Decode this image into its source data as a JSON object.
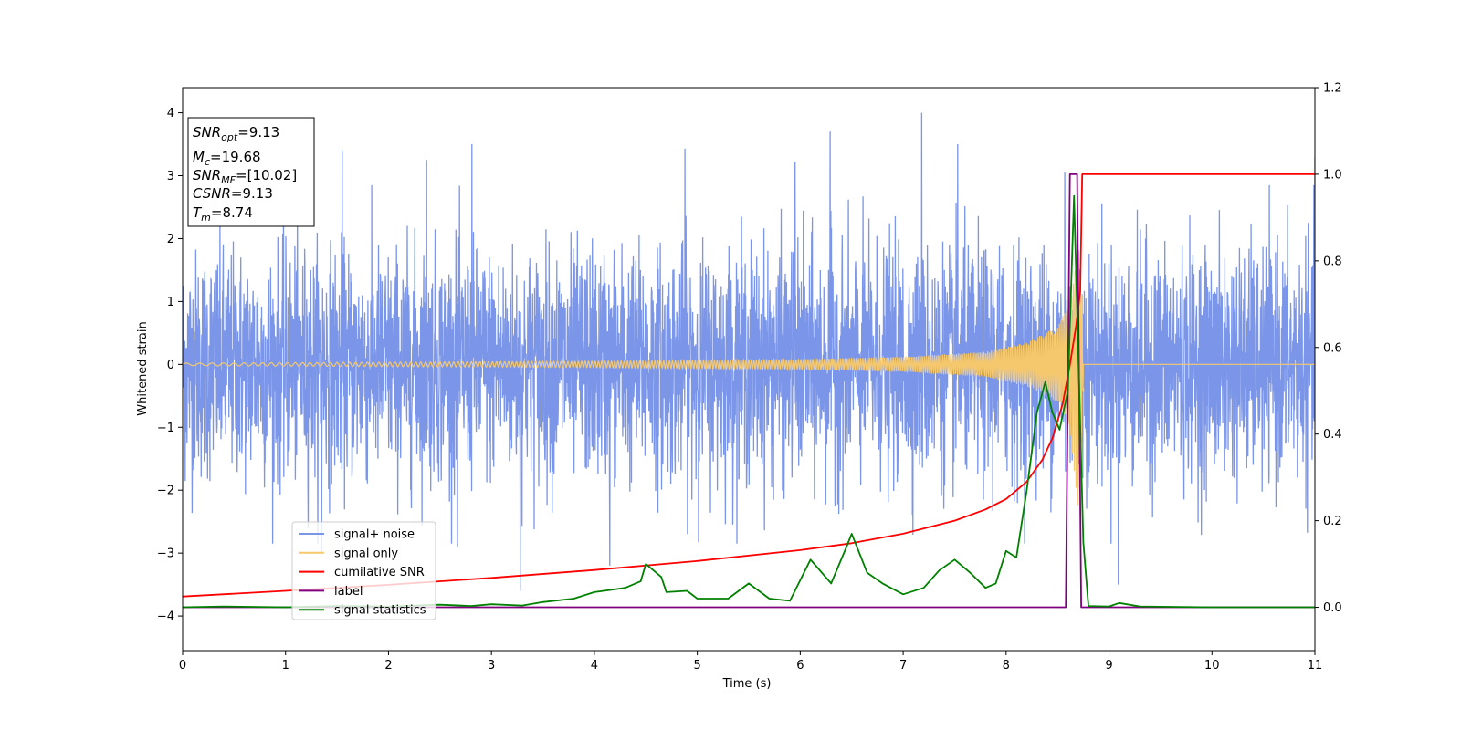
{
  "chart_data": {
    "type": "line",
    "xlabel": "Time (s)",
    "ylabel": "Whitened strain",
    "xlim": [
      0,
      11
    ],
    "ylim": [
      -4.55,
      4.4
    ],
    "y2lim": [
      -0.1,
      1.2
    ],
    "xticks": [
      0,
      1,
      2,
      3,
      4,
      5,
      6,
      7,
      8,
      9,
      10,
      11
    ],
    "yticks": [
      -4,
      -3,
      -2,
      -1,
      0,
      1,
      2,
      3,
      4
    ],
    "y2ticks": [
      "0.0",
      "0.2",
      "0.4",
      "0.6",
      "0.8",
      "1.0",
      "1.2"
    ],
    "legend_position": "lower-left",
    "annotation": {
      "snr_opt": {
        "symbol": "SNR",
        "sub": "opt",
        "value": "=9.13"
      },
      "mc": {
        "symbol": "M",
        "sub": "c",
        "value": "=19.68"
      },
      "snr_mf": {
        "symbol": "SNR",
        "sub": "MF",
        "value": "=[10.02]"
      },
      "csnr": {
        "symbol": "CSNR",
        "value": "=9.13"
      },
      "tm": {
        "symbol": "T",
        "sub": "m",
        "value": "=8.74"
      }
    },
    "series": [
      {
        "name": "signal+ noise",
        "color": "#7b96e8",
        "axis": "left",
        "description_range": [
          -3.6,
          4.0
        ],
        "spikes": [
          [
            1.55,
            3.4
          ],
          [
            2.37,
            3.25
          ],
          [
            2.81,
            3.5
          ],
          [
            4.88,
            3.43
          ],
          [
            5.95,
            3.22
          ],
          [
            6.29,
            3.7
          ],
          [
            7.18,
            4.0
          ],
          [
            7.53,
            3.5
          ],
          [
            8.57,
            3.05
          ],
          [
            9.09,
            3.55
          ],
          [
            11.0,
            3.3
          ],
          [
            3.28,
            -3.6
          ],
          [
            4.15,
            -3.2
          ],
          [
            9.09,
            -3.5
          ],
          [
            1.35,
            -3.0
          ],
          [
            2.67,
            -2.9
          ]
        ]
      },
      {
        "name": "signal only",
        "color": "#f5c86e",
        "axis": "left",
        "envelope": [
          [
            0,
            0.02
          ],
          [
            4,
            0.05
          ],
          [
            6,
            0.08
          ],
          [
            7,
            0.12
          ],
          [
            7.8,
            0.2
          ],
          [
            8.2,
            0.35
          ],
          [
            8.5,
            0.6
          ],
          [
            8.62,
            1.0
          ],
          [
            8.7,
            2.3
          ],
          [
            8.74,
            1.3
          ],
          [
            8.75,
            0
          ]
        ]
      },
      {
        "name": "cumilative SNR",
        "color": "#ff0000",
        "axis": "right",
        "points": [
          [
            0,
            0.025
          ],
          [
            1,
            0.038
          ],
          [
            2,
            0.052
          ],
          [
            3,
            0.068
          ],
          [
            4,
            0.086
          ],
          [
            5,
            0.107
          ],
          [
            6,
            0.132
          ],
          [
            6.5,
            0.148
          ],
          [
            7,
            0.17
          ],
          [
            7.5,
            0.2
          ],
          [
            7.8,
            0.226
          ],
          [
            8.0,
            0.25
          ],
          [
            8.2,
            0.29
          ],
          [
            8.35,
            0.34
          ],
          [
            8.45,
            0.39
          ],
          [
            8.55,
            0.47
          ],
          [
            8.62,
            0.56
          ],
          [
            8.68,
            0.65
          ],
          [
            8.72,
            0.73
          ],
          [
            8.74,
            1.0
          ],
          [
            11,
            1.0
          ]
        ]
      },
      {
        "name": "label",
        "color": "#800080",
        "axis": "right",
        "points": [
          [
            0,
            0
          ],
          [
            8.58,
            0
          ],
          [
            8.62,
            1.0
          ],
          [
            8.69,
            1.0
          ],
          [
            8.73,
            0
          ],
          [
            11,
            0
          ]
        ]
      },
      {
        "name": "signal statistics",
        "color": "#008000",
        "axis": "right",
        "points": [
          [
            0,
            0
          ],
          [
            0.4,
            0.002
          ],
          [
            1,
            0
          ],
          [
            1.5,
            0.003
          ],
          [
            2,
            0.002
          ],
          [
            2.5,
            0.006
          ],
          [
            2.8,
            0.003
          ],
          [
            3,
            0.007
          ],
          [
            3.3,
            0.004
          ],
          [
            3.5,
            0.012
          ],
          [
            3.8,
            0.02
          ],
          [
            4.0,
            0.035
          ],
          [
            4.15,
            0.04
          ],
          [
            4.3,
            0.045
          ],
          [
            4.45,
            0.06
          ],
          [
            4.5,
            0.1
          ],
          [
            4.65,
            0.07
          ],
          [
            4.7,
            0.035
          ],
          [
            4.9,
            0.038
          ],
          [
            5.0,
            0.02
          ],
          [
            5.3,
            0.02
          ],
          [
            5.5,
            0.055
          ],
          [
            5.7,
            0.02
          ],
          [
            5.9,
            0.015
          ],
          [
            6.1,
            0.11
          ],
          [
            6.3,
            0.055
          ],
          [
            6.45,
            0.14
          ],
          [
            6.5,
            0.17
          ],
          [
            6.65,
            0.08
          ],
          [
            6.8,
            0.055
          ],
          [
            7.0,
            0.03
          ],
          [
            7.2,
            0.045
          ],
          [
            7.35,
            0.085
          ],
          [
            7.5,
            0.11
          ],
          [
            7.65,
            0.08
          ],
          [
            7.8,
            0.045
          ],
          [
            7.9,
            0.055
          ],
          [
            8.0,
            0.13
          ],
          [
            8.1,
            0.115
          ],
          [
            8.2,
            0.27
          ],
          [
            8.3,
            0.45
          ],
          [
            8.38,
            0.52
          ],
          [
            8.45,
            0.45
          ],
          [
            8.52,
            0.41
          ],
          [
            8.6,
            0.5
          ],
          [
            8.66,
            0.95
          ],
          [
            8.7,
            0.6
          ],
          [
            8.75,
            0.15
          ],
          [
            8.8,
            0.003
          ],
          [
            9.0,
            0.002
          ],
          [
            9.1,
            0.01
          ],
          [
            9.3,
            0.002
          ],
          [
            10,
            0
          ],
          [
            11,
            0
          ]
        ]
      }
    ]
  }
}
